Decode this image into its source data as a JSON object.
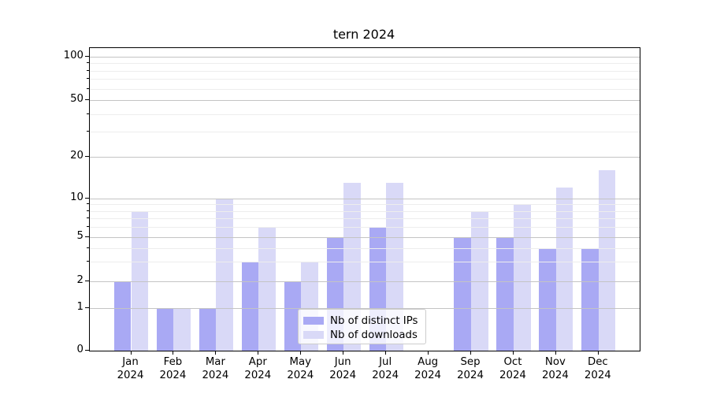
{
  "chart_data": {
    "type": "bar",
    "title": "tern 2024",
    "categories": [
      "Jan",
      "Feb",
      "Mar",
      "Apr",
      "May",
      "Jun",
      "Jul",
      "Aug",
      "Sep",
      "Oct",
      "Nov",
      "Dec"
    ],
    "x_year_label": "2024",
    "series": [
      {
        "name": "Nb of distinct IPs",
        "color": "#a9a9f4",
        "values": [
          2,
          1,
          1,
          3,
          2,
          5,
          6,
          0,
          5,
          5,
          4,
          4
        ]
      },
      {
        "name": "Nb of downloads",
        "color": "#d9d9f7",
        "values": [
          8,
          1,
          10,
          6,
          3,
          13,
          13,
          0,
          8,
          9,
          12,
          16
        ]
      }
    ],
    "y_ticks": [
      0,
      1,
      2,
      5,
      10,
      20,
      50,
      100
    ],
    "y_minor_ticks": [
      3,
      4,
      6,
      7,
      8,
      9,
      30,
      40,
      60,
      70,
      80,
      90
    ],
    "ylim": [
      0,
      100
    ],
    "yscale": "log-like with linear 0-1 segment",
    "grid": "horizontal major and minor, drawn over bars",
    "legend_position": "lower center",
    "colors": {
      "major_grid": "#c4c4c4",
      "minor_grid": "#ededed",
      "axis": "#000000",
      "background": "#ffffff"
    }
  }
}
